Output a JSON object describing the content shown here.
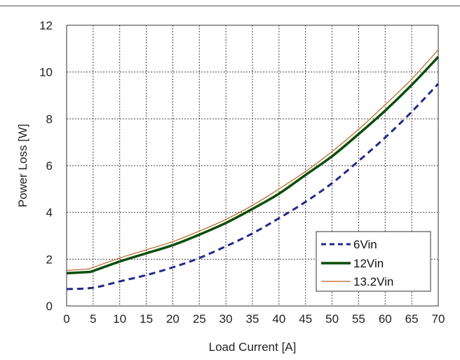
{
  "chart_data": {
    "type": "line",
    "title": "",
    "xlabel": "Load Current [A]",
    "ylabel": "Power Loss [W]",
    "xlim": [
      0,
      70
    ],
    "ylim": [
      0,
      12
    ],
    "x_ticks": [
      0,
      5,
      10,
      15,
      20,
      25,
      30,
      35,
      40,
      45,
      50,
      55,
      60,
      65,
      70
    ],
    "y_ticks": [
      0,
      2,
      4,
      6,
      8,
      10,
      12
    ],
    "grid": true,
    "legend_position": "bottom-right",
    "series": [
      {
        "name": "6Vin",
        "color": "#1f2a8a",
        "style": "dashed",
        "x": [
          0,
          5,
          10,
          15,
          20,
          25,
          30,
          35,
          40,
          45,
          50,
          55,
          60,
          65,
          70
        ],
        "y": [
          0.72,
          0.78,
          1.05,
          1.32,
          1.65,
          2.05,
          2.55,
          3.1,
          3.75,
          4.45,
          5.25,
          6.2,
          7.2,
          8.3,
          9.5
        ]
      },
      {
        "name": "12Vin",
        "color": "#0b4d0b",
        "style": "solid-thick",
        "x": [
          0,
          4,
          5,
          10,
          15,
          20,
          25,
          30,
          35,
          40,
          45,
          50,
          55,
          60,
          65,
          70
        ],
        "y": [
          1.4,
          1.45,
          1.5,
          1.9,
          2.25,
          2.6,
          3.05,
          3.55,
          4.15,
          4.8,
          5.6,
          6.4,
          7.35,
          8.35,
          9.45,
          10.65
        ]
      },
      {
        "name": "13.2Vin",
        "color": "#b5651d",
        "style": "solid-thin",
        "x": [
          0,
          4,
          5,
          10,
          15,
          20,
          25,
          30,
          35,
          40,
          45,
          50,
          55,
          60,
          65,
          70
        ],
        "y": [
          1.52,
          1.58,
          1.65,
          2.05,
          2.4,
          2.75,
          3.2,
          3.7,
          4.3,
          5.0,
          5.75,
          6.6,
          7.55,
          8.6,
          9.7,
          10.95
        ]
      }
    ]
  }
}
